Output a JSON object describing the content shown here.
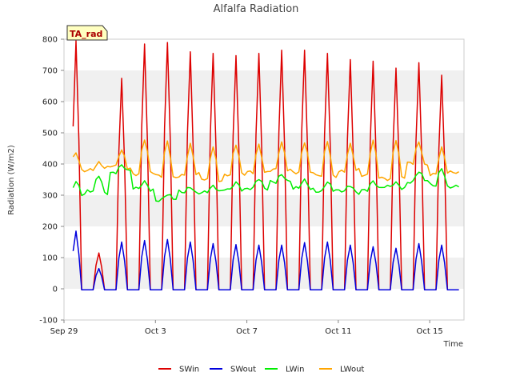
{
  "chart_data": {
    "type": "line",
    "title": "Alfalfa Radiation",
    "xlabel": "Time",
    "ylabel": "Radiation (W/m2)",
    "badge": "TA_rad",
    "ylim": [
      -100,
      800
    ],
    "yticks": [
      -100,
      0,
      100,
      200,
      300,
      400,
      500,
      600,
      700,
      800
    ],
    "xlim": [
      0,
      17.5
    ],
    "xticks": [
      {
        "pos": 0,
        "label": "Sep 29"
      },
      {
        "pos": 4,
        "label": "Oct 3"
      },
      {
        "pos": 8,
        "label": "Oct 7"
      },
      {
        "pos": 12,
        "label": "Oct 11"
      },
      {
        "pos": 16,
        "label": "Oct 15"
      }
    ],
    "x_start": 0.4,
    "x_end": 17.3,
    "x_step": 0.125,
    "grid": "horizontal bands",
    "legend_position": "bottom",
    "series": [
      {
        "name": "SWin",
        "color": "#dd0000",
        "daily_peak": [
          795,
          115,
          675,
          785,
          790,
          760,
          755,
          748,
          755,
          765,
          765,
          755,
          735,
          730,
          708,
          725,
          685
        ]
      },
      {
        "name": "SWout",
        "color": "#0000dd",
        "daily_peak": [
          185,
          65,
          150,
          155,
          158,
          150,
          145,
          142,
          140,
          140,
          148,
          150,
          140,
          135,
          130,
          145,
          140
        ]
      },
      {
        "name": "LWin",
        "color": "#00ee00",
        "day_value": [
          345,
          365,
          395,
          345,
          300,
          330,
          325,
          345,
          350,
          370,
          345,
          345,
          330,
          345,
          340,
          375,
          390
        ],
        "night_value": [
          300,
          310,
          375,
          320,
          285,
          310,
          310,
          320,
          320,
          345,
          320,
          315,
          310,
          320,
          325,
          345,
          330
        ]
      },
      {
        "name": "LWout",
        "color": "#ffa500",
        "day_value": [
          435,
          405,
          445,
          480,
          475,
          460,
          460,
          460,
          465,
          465,
          475,
          470,
          465,
          475,
          480,
          470,
          450
        ],
        "night_value": [
          380,
          385,
          390,
          370,
          360,
          365,
          350,
          365,
          375,
          380,
          375,
          360,
          380,
          360,
          355,
          400,
          370
        ]
      }
    ]
  }
}
